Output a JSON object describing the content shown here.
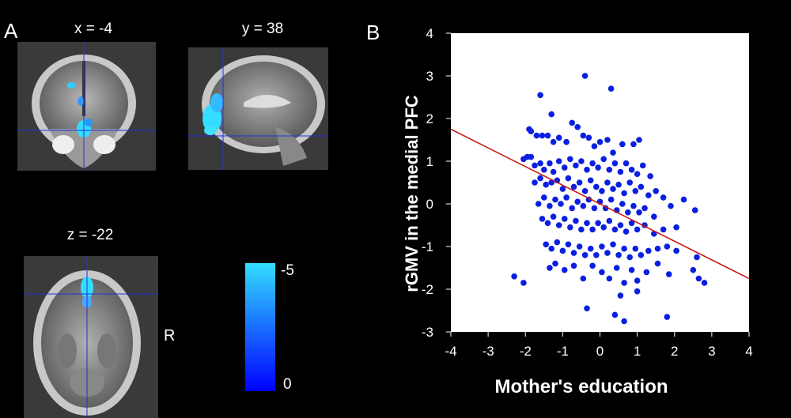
{
  "panel_a": {
    "letter": "A",
    "slices": [
      {
        "label": "x = -4"
      },
      {
        "label": "y = 38"
      },
      {
        "label": "z = -22"
      }
    ],
    "orientation_label": "R",
    "colorbar": {
      "max_label": "-5",
      "min_label": "0",
      "color_top": "#33ddff",
      "color_bottom": "#0000ff"
    }
  },
  "panel_b": {
    "letter": "B"
  },
  "colors": {
    "point": "#0a1fe0",
    "fit_line": "#c0201a",
    "crosshair": "#2233dd"
  },
  "chart_data": {
    "type": "scatter",
    "xlabel": "Mother's education",
    "ylabel": "rGMV in the medial PFC",
    "xlim": [
      -4,
      4
    ],
    "ylim": [
      -3,
      4
    ],
    "xticks": [
      -4,
      -3,
      -2,
      -1,
      0,
      1,
      2,
      3,
      4
    ],
    "yticks": [
      -3,
      -2,
      -1,
      0,
      1,
      2,
      3,
      4
    ],
    "grid": false,
    "fit_line": {
      "x": [
        -4,
        4
      ],
      "y": [
        1.75,
        -1.75
      ]
    },
    "points": [
      [
        -2.3,
        -1.7
      ],
      [
        -2.05,
        -1.85
      ],
      [
        -1.6,
        2.55
      ],
      [
        -1.3,
        2.1
      ],
      [
        -0.4,
        3.0
      ],
      [
        0.3,
        2.7
      ],
      [
        -1.9,
        1.75
      ],
      [
        -1.85,
        1.7
      ],
      [
        -1.7,
        1.6
      ],
      [
        -1.55,
        1.6
      ],
      [
        -1.4,
        1.6
      ],
      [
        -1.25,
        1.45
      ],
      [
        -1.1,
        1.55
      ],
      [
        -0.9,
        1.45
      ],
      [
        -0.75,
        1.9
      ],
      [
        -0.6,
        1.8
      ],
      [
        -0.45,
        1.6
      ],
      [
        -0.3,
        1.55
      ],
      [
        -0.15,
        1.35
      ],
      [
        0.0,
        1.45
      ],
      [
        0.2,
        1.5
      ],
      [
        0.35,
        1.2
      ],
      [
        0.6,
        1.4
      ],
      [
        0.9,
        1.4
      ],
      [
        1.05,
        1.5
      ],
      [
        -2.05,
        1.05
      ],
      [
        -1.95,
        1.1
      ],
      [
        -1.85,
        1.1
      ],
      [
        -1.75,
        0.9
      ],
      [
        -1.6,
        0.95
      ],
      [
        -1.5,
        0.8
      ],
      [
        -1.35,
        0.95
      ],
      [
        -1.25,
        0.75
      ],
      [
        -1.1,
        1.0
      ],
      [
        -0.95,
        0.85
      ],
      [
        -0.8,
        1.05
      ],
      [
        -0.65,
        0.9
      ],
      [
        -0.5,
        1.0
      ],
      [
        -0.35,
        0.8
      ],
      [
        -0.2,
        0.95
      ],
      [
        -0.05,
        0.85
      ],
      [
        0.1,
        1.05
      ],
      [
        0.25,
        0.8
      ],
      [
        0.4,
        0.95
      ],
      [
        0.55,
        0.75
      ],
      [
        0.7,
        0.95
      ],
      [
        0.85,
        0.8
      ],
      [
        1.0,
        0.7
      ],
      [
        1.15,
        0.9
      ],
      [
        1.35,
        0.65
      ],
      [
        -1.75,
        0.5
      ],
      [
        -1.6,
        0.6
      ],
      [
        -1.45,
        0.45
      ],
      [
        -1.3,
        0.5
      ],
      [
        -1.15,
        0.55
      ],
      [
        -1.0,
        0.35
      ],
      [
        -0.85,
        0.6
      ],
      [
        -0.7,
        0.4
      ],
      [
        -0.55,
        0.5
      ],
      [
        -0.4,
        0.3
      ],
      [
        -0.25,
        0.55
      ],
      [
        -0.1,
        0.4
      ],
      [
        0.05,
        0.3
      ],
      [
        0.2,
        0.5
      ],
      [
        0.35,
        0.35
      ],
      [
        0.5,
        0.45
      ],
      [
        0.65,
        0.25
      ],
      [
        0.8,
        0.5
      ],
      [
        0.95,
        0.3
      ],
      [
        1.1,
        0.4
      ],
      [
        1.3,
        0.2
      ],
      [
        1.5,
        0.3
      ],
      [
        1.7,
        0.15
      ],
      [
        2.25,
        0.1
      ],
      [
        1.9,
        -0.05
      ],
      [
        2.55,
        -0.15
      ],
      [
        -1.65,
        0.0
      ],
      [
        -1.5,
        0.15
      ],
      [
        -1.35,
        -0.05
      ],
      [
        -1.2,
        0.1
      ],
      [
        -1.05,
        0.0
      ],
      [
        -0.9,
        0.15
      ],
      [
        -0.75,
        -0.1
      ],
      [
        -0.6,
        0.05
      ],
      [
        -0.45,
        -0.05
      ],
      [
        -0.3,
        0.1
      ],
      [
        -0.15,
        -0.1
      ],
      [
        0.0,
        0.05
      ],
      [
        0.15,
        -0.1
      ],
      [
        0.3,
        0.1
      ],
      [
        0.45,
        -0.15
      ],
      [
        0.6,
        0.0
      ],
      [
        0.75,
        -0.2
      ],
      [
        0.9,
        -0.05
      ],
      [
        1.05,
        -0.2
      ],
      [
        1.2,
        -0.1
      ],
      [
        1.45,
        -0.3
      ],
      [
        2.05,
        -0.55
      ],
      [
        -1.55,
        -0.35
      ],
      [
        -1.4,
        -0.45
      ],
      [
        -1.25,
        -0.3
      ],
      [
        -1.1,
        -0.5
      ],
      [
        -0.95,
        -0.35
      ],
      [
        -0.8,
        -0.55
      ],
      [
        -0.65,
        -0.4
      ],
      [
        -0.5,
        -0.6
      ],
      [
        -0.35,
        -0.45
      ],
      [
        -0.2,
        -0.6
      ],
      [
        -0.05,
        -0.45
      ],
      [
        0.1,
        -0.55
      ],
      [
        0.25,
        -0.4
      ],
      [
        0.4,
        -0.6
      ],
      [
        0.55,
        -0.5
      ],
      [
        0.7,
        -0.65
      ],
      [
        0.85,
        -0.45
      ],
      [
        1.0,
        -0.6
      ],
      [
        1.2,
        -0.5
      ],
      [
        1.45,
        -0.7
      ],
      [
        1.7,
        -0.6
      ],
      [
        -1.45,
        -0.95
      ],
      [
        -1.3,
        -1.05
      ],
      [
        -1.15,
        -0.9
      ],
      [
        -1.0,
        -1.1
      ],
      [
        -0.85,
        -0.95
      ],
      [
        -0.7,
        -1.15
      ],
      [
        -0.55,
        -1.0
      ],
      [
        -0.4,
        -1.2
      ],
      [
        -0.25,
        -1.05
      ],
      [
        -0.1,
        -1.2
      ],
      [
        0.05,
        -1.0
      ],
      [
        0.2,
        -1.15
      ],
      [
        0.35,
        -0.95
      ],
      [
        0.5,
        -1.2
      ],
      [
        0.65,
        -1.05
      ],
      [
        0.8,
        -1.25
      ],
      [
        0.95,
        -1.05
      ],
      [
        1.1,
        -1.2
      ],
      [
        1.3,
        -1.1
      ],
      [
        1.55,
        -1.05
      ],
      [
        1.8,
        -1.0
      ],
      [
        2.05,
        -1.1
      ],
      [
        2.6,
        -1.25
      ],
      [
        -1.35,
        -1.5
      ],
      [
        -1.2,
        -1.4
      ],
      [
        -0.95,
        -1.55
      ],
      [
        -0.7,
        -1.45
      ],
      [
        -0.45,
        -1.75
      ],
      [
        -0.2,
        -1.45
      ],
      [
        0.05,
        -1.6
      ],
      [
        0.25,
        -1.75
      ],
      [
        0.45,
        -1.5
      ],
      [
        0.65,
        -1.85
      ],
      [
        0.85,
        -1.55
      ],
      [
        1.0,
        -1.8
      ],
      [
        1.25,
        -1.6
      ],
      [
        1.55,
        -1.4
      ],
      [
        1.85,
        -1.65
      ],
      [
        2.5,
        -1.55
      ],
      [
        2.65,
        -1.75
      ],
      [
        2.8,
        -1.85
      ],
      [
        0.55,
        -2.15
      ],
      [
        1.0,
        -2.05
      ],
      [
        -0.35,
        -2.45
      ],
      [
        0.4,
        -2.6
      ],
      [
        0.65,
        -2.75
      ],
      [
        1.8,
        -2.65
      ]
    ]
  }
}
